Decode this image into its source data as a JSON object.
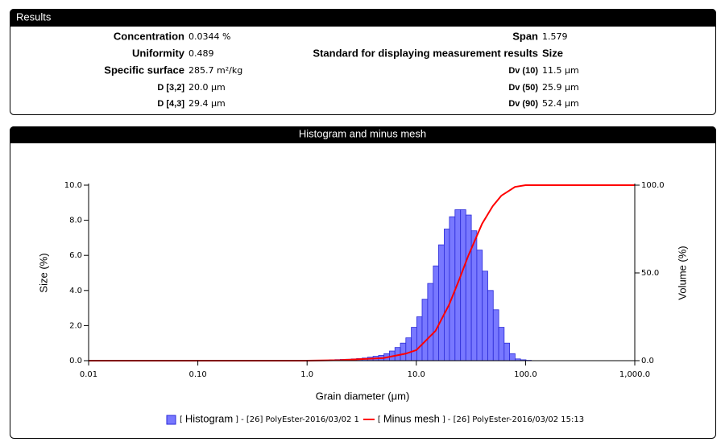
{
  "results": {
    "title": "Results",
    "left": [
      {
        "label": "Concentration",
        "value": "0.0344 %"
      },
      {
        "label": "Uniformity",
        "value": "0.489"
      },
      {
        "label": "Specific surface",
        "value": "285.7 m²/kg"
      },
      {
        "label": "D [3,2]",
        "value": "20.0 µm"
      },
      {
        "label": "D [4,3]",
        "value": "29.4 µm"
      }
    ],
    "right": [
      {
        "label": "Span",
        "value": "1.579"
      },
      {
        "label": "Standard for displaying measurement results",
        "value": "Size"
      },
      {
        "label": "Dv (10)",
        "value": "11.5 µm"
      },
      {
        "label": "Dv (50)",
        "value": "25.9 µm"
      },
      {
        "label": "Dv (90)",
        "value": "52.4 µm"
      }
    ]
  },
  "chart_data": {
    "type": "histogram",
    "title": "Histogram and minus mesh",
    "xlabel": "Grain diameter (μm)",
    "ylabel": "Size (%)",
    "y2label": "Volume (%)",
    "xscale": "log",
    "xlim": [
      0.01,
      1000
    ],
    "xticks": [
      0.01,
      {
        "value": 0.1,
        "label": "0.10"
      },
      {
        "value": 1,
        "label": "1.0"
      },
      {
        "value": 10,
        "label": "10.0"
      },
      {
        "value": 100,
        "label": "100.0"
      },
      {
        "value": 1000,
        "label": "1,000.0"
      }
    ],
    "ylim": [
      0,
      10
    ],
    "yticks": [
      {
        "value": 0,
        "label": "0.0"
      },
      {
        "value": 2,
        "label": "2.0"
      },
      {
        "value": 4,
        "label": "4.0"
      },
      {
        "value": 6,
        "label": "6.0"
      },
      {
        "value": 8,
        "label": "8.0"
      },
      {
        "value": 10,
        "label": "10.0"
      }
    ],
    "y2lim": [
      0,
      100
    ],
    "y2ticks": [
      {
        "value": 0,
        "label": "0.0"
      },
      {
        "value": 50,
        "label": "50.0"
      },
      {
        "value": 100,
        "label": "100.0"
      }
    ],
    "legend_brackets": [
      "[",
      "]"
    ],
    "series": [
      {
        "name": "Histogram",
        "type": "histogram",
        "color": "#7878ff",
        "edge": "#2a2ad8",
        "source": "- [26] PolyEster-2016/03/02 1",
        "bins": [
          1.6,
          1.8,
          2.01,
          2.26,
          2.54,
          2.84,
          3.19,
          3.58,
          4.02,
          4.51,
          5.06,
          5.68,
          6.37,
          7.15,
          8.02,
          9.0,
          10.1,
          11.3,
          12.7,
          14.3,
          16.0,
          18.0,
          20.1,
          22.6,
          25.4,
          28.4,
          31.9,
          35.8,
          40.2,
          45.1,
          50.6,
          56.8,
          63.7,
          71.5,
          80.2,
          90.0,
          101,
          113
        ],
        "values": [
          0.05,
          0.06,
          0.07,
          0.08,
          0.1,
          0.12,
          0.15,
          0.2,
          0.25,
          0.3,
          0.4,
          0.55,
          0.75,
          1.0,
          1.3,
          1.9,
          2.5,
          3.5,
          4.4,
          5.4,
          6.6,
          7.5,
          8.2,
          8.6,
          8.6,
          8.3,
          7.4,
          6.3,
          5.1,
          4.0,
          2.9,
          1.9,
          1.0,
          0.4,
          0.1,
          0.05,
          0.02
        ]
      },
      {
        "name": "Minus mesh",
        "type": "line",
        "axis": "y2",
        "color": "#ff0000",
        "source": "- [26] PolyEster-2016/03/02 15:13",
        "x": [
          0.01,
          1.0,
          2,
          5,
          8,
          10,
          15,
          20,
          25,
          30,
          40,
          50,
          60,
          80,
          100,
          1000
        ],
        "values": [
          0,
          0,
          0.3,
          1.5,
          4,
          6,
          17,
          32,
          47,
          60,
          78,
          88,
          94,
          99,
          100,
          100
        ]
      }
    ]
  }
}
